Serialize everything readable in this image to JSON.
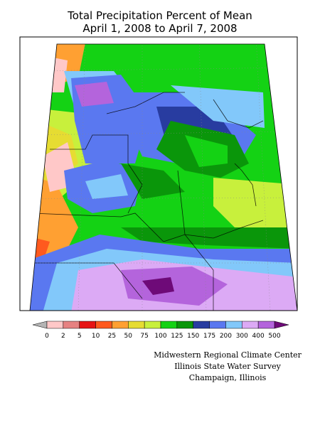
{
  "title": "Total Precipitation Percent of Mean",
  "subtitle": "April 1, 2008 to April 7, 2008",
  "legend": {
    "ticks": [
      0,
      2,
      5,
      10,
      25,
      50,
      75,
      100,
      125,
      150,
      175,
      200,
      300,
      400,
      500
    ],
    "under_color": "#b4b4b4",
    "over_color": "#6e0a78",
    "colors": [
      "#ffc8c8",
      "#e68282",
      "#e61414",
      "#ff5a1e",
      "#ffa032",
      "#e6dc32",
      "#c8f03c",
      "#14d214",
      "#0a960a",
      "#283ca0",
      "#5a78f0",
      "#82c8fa",
      "#dcaaf5",
      "#b464dc"
    ]
  },
  "credits": [
    "Midwestern Regional Climate Center",
    "Illinois State Water Survey",
    "Champaign, Illinois"
  ]
}
